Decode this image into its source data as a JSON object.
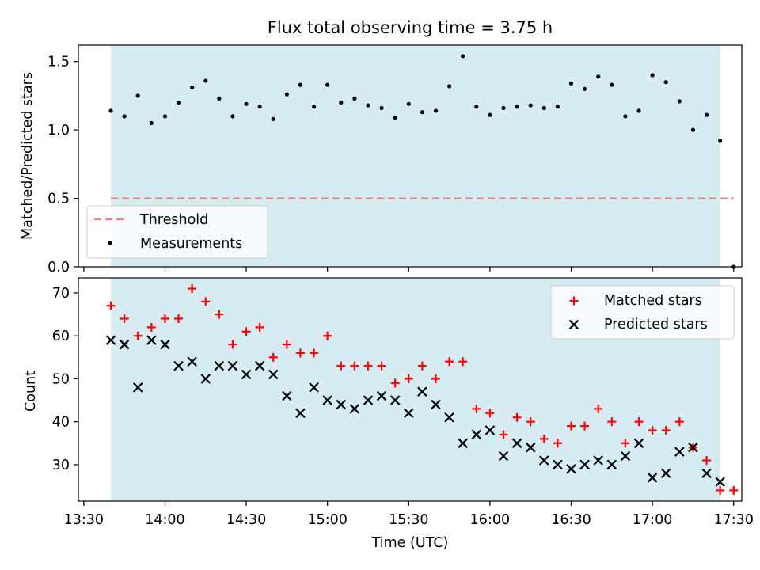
{
  "colors": {
    "band": "#add8e6",
    "threshold": "#f08080",
    "matched": "#ff0000",
    "predicted": "#000000",
    "measurement": "#000000"
  },
  "chart_data": [
    {
      "type": "scatter",
      "title": "Flux total observing time = 3.75 h",
      "xlabel": "",
      "ylabel": "Matched/Predicted stars",
      "xlim": [
        "13:28",
        "17:33"
      ],
      "ylim": [
        0,
        1.62
      ],
      "yticks": [
        0.0,
        0.5,
        1.0,
        1.5
      ],
      "ytick_labels": [
        "0.0",
        "0.5",
        "1.0",
        "1.5"
      ],
      "observing_window": [
        "13:40",
        "17:25"
      ],
      "threshold": {
        "value": 0.5,
        "x_range": [
          "13:40",
          "17:30"
        ],
        "label": "Threshold"
      },
      "legend": {
        "position": "lower-left",
        "entries": [
          "Threshold",
          "Measurements"
        ]
      },
      "series": [
        {
          "name": "Measurements",
          "x": [
            "13:40",
            "13:45",
            "13:50",
            "13:55",
            "14:00",
            "14:05",
            "14:10",
            "14:15",
            "14:20",
            "14:25",
            "14:30",
            "14:35",
            "14:40",
            "14:45",
            "14:50",
            "14:55",
            "15:00",
            "15:05",
            "15:10",
            "15:15",
            "15:20",
            "15:25",
            "15:30",
            "15:35",
            "15:40",
            "15:45",
            "15:50",
            "15:55",
            "16:00",
            "16:05",
            "16:10",
            "16:15",
            "16:20",
            "16:25",
            "16:30",
            "16:35",
            "16:40",
            "16:45",
            "16:50",
            "16:55",
            "17:00",
            "17:05",
            "17:10",
            "17:15",
            "17:20",
            "17:25",
            "17:30"
          ],
          "values": [
            1.14,
            1.1,
            1.25,
            1.05,
            1.1,
            1.2,
            1.31,
            1.36,
            1.23,
            1.1,
            1.19,
            1.17,
            1.08,
            1.26,
            1.33,
            1.17,
            1.33,
            1.2,
            1.23,
            1.18,
            1.16,
            1.09,
            1.19,
            1.13,
            1.14,
            1.32,
            1.54,
            1.17,
            1.11,
            1.16,
            1.17,
            1.18,
            1.16,
            1.17,
            1.34,
            1.3,
            1.39,
            1.33,
            1.1,
            1.14,
            1.4,
            1.35,
            1.21,
            1.0,
            1.11,
            0.92,
            0.0
          ]
        }
      ]
    },
    {
      "type": "scatter",
      "title": "",
      "xlabel": "Time (UTC)",
      "ylabel": "Count",
      "xlim": [
        "13:28",
        "17:33"
      ],
      "ylim": [
        21.5,
        73.5
      ],
      "yticks": [
        30,
        40,
        50,
        60,
        70
      ],
      "ytick_labels": [
        "30",
        "40",
        "50",
        "60",
        "70"
      ],
      "xticks": [
        "13:30",
        "14:00",
        "14:30",
        "15:00",
        "15:30",
        "16:00",
        "16:30",
        "17:00",
        "17:30"
      ],
      "observing_window": [
        "13:40",
        "17:25"
      ],
      "legend": {
        "position": "top-right",
        "entries": [
          "Matched stars",
          "Predicted stars"
        ]
      },
      "x": [
        "13:40",
        "13:45",
        "13:50",
        "13:55",
        "14:00",
        "14:05",
        "14:10",
        "14:15",
        "14:20",
        "14:25",
        "14:30",
        "14:35",
        "14:40",
        "14:45",
        "14:50",
        "14:55",
        "15:00",
        "15:05",
        "15:10",
        "15:15",
        "15:20",
        "15:25",
        "15:30",
        "15:35",
        "15:40",
        "15:45",
        "15:50",
        "15:55",
        "16:00",
        "16:05",
        "16:10",
        "16:15",
        "16:20",
        "16:25",
        "16:30",
        "16:35",
        "16:40",
        "16:45",
        "16:50",
        "16:55",
        "17:00",
        "17:05",
        "17:10",
        "17:15",
        "17:20",
        "17:25",
        "17:30"
      ],
      "series": [
        {
          "name": "Matched stars",
          "marker": "+",
          "values": [
            67,
            64,
            60,
            62,
            64,
            64,
            71,
            68,
            65,
            58,
            61,
            62,
            55,
            58,
            56,
            56,
            60,
            53,
            53,
            53,
            53,
            49,
            50,
            53,
            50,
            54,
            54,
            43,
            42,
            37,
            41,
            40,
            36,
            35,
            39,
            39,
            43,
            40,
            35,
            40,
            38,
            38,
            40,
            34,
            31,
            24,
            24
          ]
        },
        {
          "name": "Predicted stars",
          "marker": "x",
          "values": [
            59,
            58,
            48,
            59,
            58,
            53,
            54,
            50,
            53,
            53,
            51,
            53,
            51,
            46,
            42,
            48,
            45,
            44,
            43,
            45,
            46,
            45,
            42,
            47,
            44,
            41,
            35,
            37,
            38,
            32,
            35,
            34,
            31,
            30,
            29,
            30,
            31,
            30,
            32,
            35,
            27,
            28,
            33,
            34,
            28,
            26,
            null
          ]
        }
      ]
    }
  ]
}
